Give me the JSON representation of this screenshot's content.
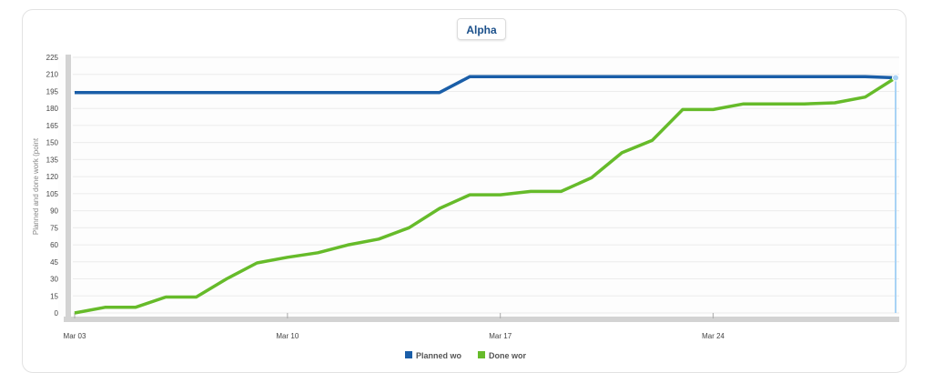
{
  "chart_data": {
    "type": "line",
    "title": "Alpha",
    "ylabel": "Planned and done work (point",
    "xlabel": "",
    "ylim": [
      0,
      225
    ],
    "yticks": [
      0,
      15,
      30,
      45,
      60,
      75,
      90,
      105,
      120,
      135,
      150,
      165,
      180,
      195,
      210,
      225
    ],
    "xticks": [
      {
        "label": "Mar 03",
        "day": 0
      },
      {
        "label": "Mar 10",
        "day": 7
      },
      {
        "label": "Mar 17",
        "day": 14
      },
      {
        "label": "Mar 24",
        "day": 21
      }
    ],
    "grid": true,
    "legend_placement": "bottom-center",
    "colors": {
      "planned": "#1a5ea8",
      "done": "#66bb2a",
      "crosshair": "#a9d3f5"
    },
    "series": [
      {
        "name": "Planned wo",
        "key": "planned",
        "points": [
          {
            "day": 0,
            "y": 194
          },
          {
            "day": 1,
            "y": 194
          },
          {
            "day": 2,
            "y": 194
          },
          {
            "day": 3,
            "y": 194
          },
          {
            "day": 4,
            "y": 194
          },
          {
            "day": 5,
            "y": 194
          },
          {
            "day": 6,
            "y": 194
          },
          {
            "day": 7,
            "y": 194
          },
          {
            "day": 8,
            "y": 194
          },
          {
            "day": 9,
            "y": 194
          },
          {
            "day": 10,
            "y": 194
          },
          {
            "day": 11,
            "y": 194
          },
          {
            "day": 12,
            "y": 194
          },
          {
            "day": 13,
            "y": 208
          },
          {
            "day": 14,
            "y": 208
          },
          {
            "day": 15,
            "y": 208
          },
          {
            "day": 16,
            "y": 208
          },
          {
            "day": 17,
            "y": 208
          },
          {
            "day": 18,
            "y": 208
          },
          {
            "day": 19,
            "y": 208
          },
          {
            "day": 20,
            "y": 208
          },
          {
            "day": 21,
            "y": 208
          },
          {
            "day": 22,
            "y": 208
          },
          {
            "day": 23,
            "y": 208
          },
          {
            "day": 24,
            "y": 208
          },
          {
            "day": 25,
            "y": 208
          },
          {
            "day": 26,
            "y": 208
          },
          {
            "day": 27,
            "y": 207
          }
        ]
      },
      {
        "name": "Done wor",
        "key": "done",
        "points": [
          {
            "day": 0,
            "y": 0
          },
          {
            "day": 1,
            "y": 5
          },
          {
            "day": 2,
            "y": 5
          },
          {
            "day": 3,
            "y": 14
          },
          {
            "day": 4,
            "y": 14
          },
          {
            "day": 5,
            "y": 30
          },
          {
            "day": 6,
            "y": 44
          },
          {
            "day": 7,
            "y": 49
          },
          {
            "day": 8,
            "y": 53
          },
          {
            "day": 9,
            "y": 60
          },
          {
            "day": 10,
            "y": 65
          },
          {
            "day": 11,
            "y": 75
          },
          {
            "day": 12,
            "y": 92
          },
          {
            "day": 13,
            "y": 104
          },
          {
            "day": 14,
            "y": 104
          },
          {
            "day": 15,
            "y": 107
          },
          {
            "day": 16,
            "y": 107
          },
          {
            "day": 17,
            "y": 119
          },
          {
            "day": 18,
            "y": 141
          },
          {
            "day": 19,
            "y": 152
          },
          {
            "day": 20,
            "y": 179
          },
          {
            "day": 21,
            "y": 179
          },
          {
            "day": 22,
            "y": 184
          },
          {
            "day": 23,
            "y": 184
          },
          {
            "day": 24,
            "y": 184
          },
          {
            "day": 25,
            "y": 185
          },
          {
            "day": 26,
            "y": 190
          },
          {
            "day": 27,
            "y": 207
          }
        ]
      }
    ]
  }
}
